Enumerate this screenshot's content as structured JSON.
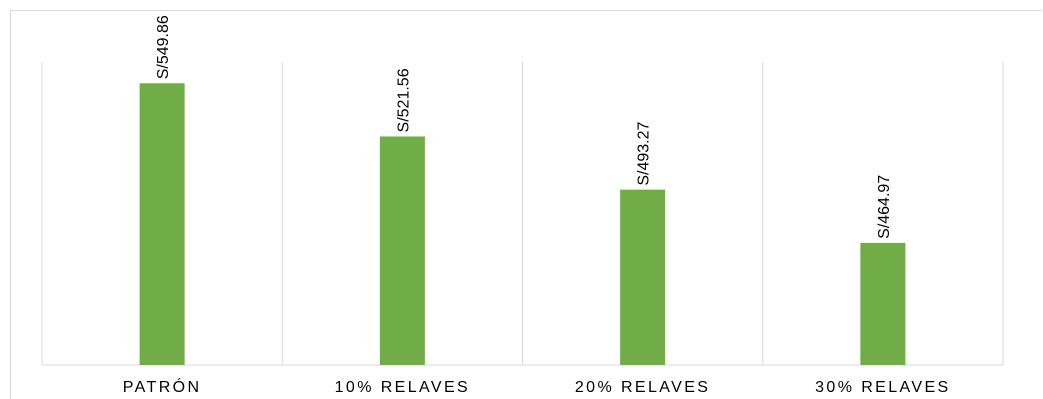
{
  "chart_data": {
    "type": "bar",
    "categories": [
      "PATRÓN",
      "10% RELAVES",
      "20% RELAVES",
      "30% RELAVES"
    ],
    "values": [
      549.86,
      521.56,
      493.27,
      464.97
    ],
    "data_labels": [
      "S/549.86",
      "S/521.56",
      "S/493.27",
      "S/464.97"
    ],
    "title": "",
    "xlabel": "",
    "ylabel": "",
    "grid": "vertical-category-separators",
    "legend": "none",
    "bar_color": "#70ad47",
    "grid_color": "#d9d9d9"
  }
}
